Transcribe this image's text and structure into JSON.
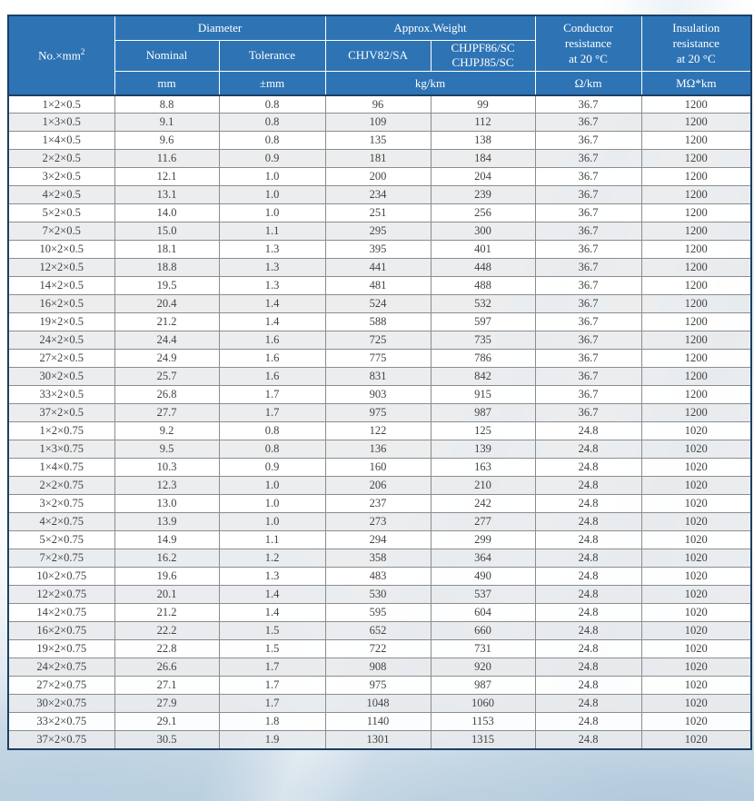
{
  "colors": {
    "header_blue": "#2e74b5",
    "outer_border": "#1b3f66",
    "grid_line": "#8c8c8c",
    "row_even": "rgba(232,234,237,0.88)",
    "row_odd": "rgba(255,255,255,0.93)",
    "cell_text": "#424242",
    "header_text": "#ffffff"
  },
  "table": {
    "header": {
      "no_prefix": "No.×mm",
      "no_sup": "2",
      "diameter": "Diameter",
      "approx_weight": "Approx.Weight",
      "nominal": "Nominal",
      "tolerance": "Tolerance",
      "weight_col1": "CHJV82/SA",
      "weight_col2": "CHJPF86/SC\nCHJPJ85/SC",
      "conductor": "Conductor\nresistance\nat 20 °C",
      "insulation": "Insulation\nresistance\nat 20 °C"
    },
    "units": {
      "nominal": "mm",
      "tolerance": "±mm",
      "weight": "kg/km",
      "conductor": "Ω/km",
      "insulation": "MΩ*km"
    },
    "rows": [
      [
        "1×2×0.5",
        "8.8",
        "0.8",
        "96",
        "99",
        "36.7",
        "1200"
      ],
      [
        "1×3×0.5",
        "9.1",
        "0.8",
        "109",
        "112",
        "36.7",
        "1200"
      ],
      [
        "1×4×0.5",
        "9.6",
        "0.8",
        "135",
        "138",
        "36.7",
        "1200"
      ],
      [
        "2×2×0.5",
        "11.6",
        "0.9",
        "181",
        "184",
        "36.7",
        "1200"
      ],
      [
        "3×2×0.5",
        "12.1",
        "1.0",
        "200",
        "204",
        "36.7",
        "1200"
      ],
      [
        "4×2×0.5",
        "13.1",
        "1.0",
        "234",
        "239",
        "36.7",
        "1200"
      ],
      [
        "5×2×0.5",
        "14.0",
        "1.0",
        "251",
        "256",
        "36.7",
        "1200"
      ],
      [
        "7×2×0.5",
        "15.0",
        "1.1",
        "295",
        "300",
        "36.7",
        "1200"
      ],
      [
        "10×2×0.5",
        "18.1",
        "1.3",
        "395",
        "401",
        "36.7",
        "1200"
      ],
      [
        "12×2×0.5",
        "18.8",
        "1.3",
        "441",
        "448",
        "36.7",
        "1200"
      ],
      [
        "14×2×0.5",
        "19.5",
        "1.3",
        "481",
        "488",
        "36.7",
        "1200"
      ],
      [
        "16×2×0.5",
        "20.4",
        "1.4",
        "524",
        "532",
        "36.7",
        "1200"
      ],
      [
        "19×2×0.5",
        "21.2",
        "1.4",
        "588",
        "597",
        "36.7",
        "1200"
      ],
      [
        "24×2×0.5",
        "24.4",
        "1.6",
        "725",
        "735",
        "36.7",
        "1200"
      ],
      [
        "27×2×0.5",
        "24.9",
        "1.6",
        "775",
        "786",
        "36.7",
        "1200"
      ],
      [
        "30×2×0.5",
        "25.7",
        "1.6",
        "831",
        "842",
        "36.7",
        "1200"
      ],
      [
        "33×2×0.5",
        "26.8",
        "1.7",
        "903",
        "915",
        "36.7",
        "1200"
      ],
      [
        "37×2×0.5",
        "27.7",
        "1.7",
        "975",
        "987",
        "36.7",
        "1200"
      ],
      [
        "1×2×0.75",
        "9.2",
        "0.8",
        "122",
        "125",
        "24.8",
        "1020"
      ],
      [
        "1×3×0.75",
        "9.5",
        "0.8",
        "136",
        "139",
        "24.8",
        "1020"
      ],
      [
        "1×4×0.75",
        "10.3",
        "0.9",
        "160",
        "163",
        "24.8",
        "1020"
      ],
      [
        "2×2×0.75",
        "12.3",
        "1.0",
        "206",
        "210",
        "24.8",
        "1020"
      ],
      [
        "3×2×0.75",
        "13.0",
        "1.0",
        "237",
        "242",
        "24.8",
        "1020"
      ],
      [
        "4×2×0.75",
        "13.9",
        "1.0",
        "273",
        "277",
        "24.8",
        "1020"
      ],
      [
        "5×2×0.75",
        "14.9",
        "1.1",
        "294",
        "299",
        "24.8",
        "1020"
      ],
      [
        "7×2×0.75",
        "16.2",
        "1.2",
        "358",
        "364",
        "24.8",
        "1020"
      ],
      [
        "10×2×0.75",
        "19.6",
        "1.3",
        "483",
        "490",
        "24.8",
        "1020"
      ],
      [
        "12×2×0.75",
        "20.1",
        "1.4",
        "530",
        "537",
        "24.8",
        "1020"
      ],
      [
        "14×2×0.75",
        "21.2",
        "1.4",
        "595",
        "604",
        "24.8",
        "1020"
      ],
      [
        "16×2×0.75",
        "22.2",
        "1.5",
        "652",
        "660",
        "24.8",
        "1020"
      ],
      [
        "19×2×0.75",
        "22.8",
        "1.5",
        "722",
        "731",
        "24.8",
        "1020"
      ],
      [
        "24×2×0.75",
        "26.6",
        "1.7",
        "908",
        "920",
        "24.8",
        "1020"
      ],
      [
        "27×2×0.75",
        "27.1",
        "1.7",
        "975",
        "987",
        "24.8",
        "1020"
      ],
      [
        "30×2×0.75",
        "27.9",
        "1.7",
        "1048",
        "1060",
        "24.8",
        "1020"
      ],
      [
        "33×2×0.75",
        "29.1",
        "1.8",
        "1140",
        "1153",
        "24.8",
        "1020"
      ],
      [
        "37×2×0.75",
        "30.5",
        "1.9",
        "1301",
        "1315",
        "24.8",
        "1020"
      ]
    ]
  }
}
